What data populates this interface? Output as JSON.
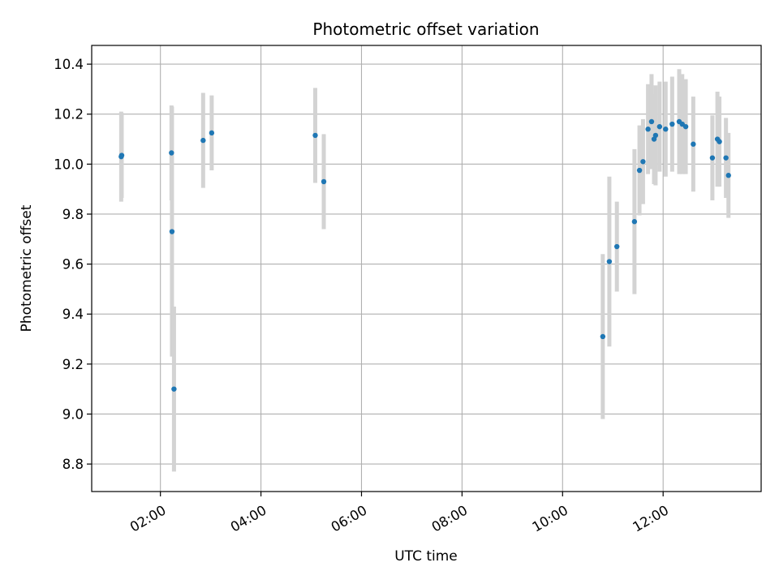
{
  "chart_data": {
    "type": "scatter",
    "title": "Photometric offset variation",
    "xlabel": "UTC time",
    "ylabel": "Photometric offset",
    "grid": true,
    "legend": "none",
    "x_tick_labels": [
      "02:00",
      "04:00",
      "06:00",
      "08:00",
      "10:00",
      "12:00"
    ],
    "x_ticks_hours": [
      2,
      4,
      6,
      8,
      10,
      12
    ],
    "xlim_hours": [
      0.633,
      13.95
    ],
    "y_tick_labels": [
      "8.8",
      "9.0",
      "9.2",
      "9.4",
      "9.6",
      "9.8",
      "10.0",
      "10.2",
      "10.4"
    ],
    "y_ticks": [
      8.8,
      9.0,
      9.2,
      9.4,
      9.6,
      9.8,
      10.0,
      10.2,
      10.4
    ],
    "ylim": [
      8.69,
      10.475
    ],
    "colors": {
      "points": "#1f77b4",
      "errorbars": "#d3d3d3"
    },
    "series": [
      {
        "x_hours": [
          1.22,
          1.23,
          2.22,
          2.23,
          2.27,
          2.85,
          3.02,
          5.08,
          5.25,
          10.8,
          10.93,
          11.08,
          11.43,
          11.53,
          11.6,
          11.7,
          11.77,
          11.82,
          11.85,
          11.93,
          12.05,
          12.18,
          12.32,
          12.38,
          12.45,
          12.6,
          12.98,
          13.08,
          13.12,
          13.25,
          13.3
        ],
        "y": [
          10.03,
          10.035,
          10.045,
          9.73,
          9.1,
          10.095,
          10.125,
          10.115,
          9.93,
          9.31,
          9.61,
          9.67,
          9.77,
          9.975,
          10.01,
          10.14,
          10.17,
          10.1,
          10.115,
          10.15,
          10.14,
          10.16,
          10.17,
          10.16,
          10.15,
          10.08,
          10.025,
          10.1,
          10.09,
          10.025,
          9.955
        ],
        "yerr": [
          0.18,
          0.17,
          0.19,
          0.5,
          0.33,
          0.19,
          0.15,
          0.19,
          0.19,
          0.33,
          0.34,
          0.18,
          0.29,
          0.18,
          0.17,
          0.18,
          0.19,
          0.18,
          0.2,
          0.18,
          0.19,
          0.19,
          0.21,
          0.2,
          0.19,
          0.19,
          0.17,
          0.19,
          0.18,
          0.16,
          0.17
        ]
      }
    ]
  }
}
